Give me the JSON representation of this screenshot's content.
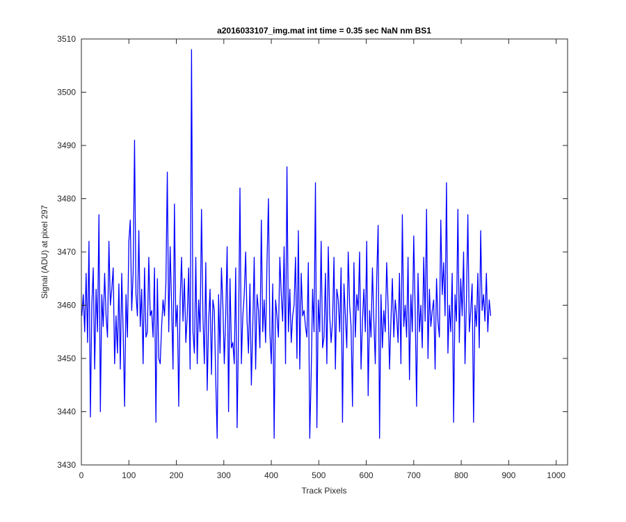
{
  "chart_data": {
    "type": "line",
    "title": "a2016033107_img.mat int time = 0.35 sec  NaN nm BS1",
    "xlabel": "Track Pixels",
    "ylabel": "Signal (ADU) at pixel 297",
    "xlim": [
      0,
      1024
    ],
    "ylim": [
      3430,
      3510
    ],
    "xticks": [
      0,
      100,
      200,
      300,
      400,
      500,
      600,
      700,
      800,
      900,
      1000
    ],
    "yticks": [
      3430,
      3440,
      3450,
      3460,
      3470,
      3480,
      3490,
      3500,
      3510
    ],
    "grid": false,
    "box": true,
    "series": [
      {
        "color": "#0000ff",
        "sample_step": 3,
        "x_start": 1,
        "y": [
          3458,
          3462,
          3455,
          3466,
          3453,
          3472,
          3439,
          3460,
          3467,
          3448,
          3463,
          3455,
          3477,
          3440,
          3462,
          3456,
          3466,
          3458,
          3454,
          3472,
          3460,
          3463,
          3467,
          3449,
          3458,
          3451,
          3464,
          3448,
          3466,
          3455,
          3441,
          3462,
          3454,
          3472,
          3476,
          3459,
          3466,
          3491,
          3462,
          3458,
          3474,
          3456,
          3463,
          3449,
          3467,
          3454,
          3455,
          3469,
          3458,
          3459,
          3454,
          3467,
          3438,
          3465,
          3450,
          3449,
          3456,
          3461,
          3458,
          3464,
          3485,
          3455,
          3471,
          3460,
          3448,
          3479,
          3456,
          3460,
          3441,
          3461,
          3469,
          3457,
          3465,
          3453,
          3458,
          3467,
          3448,
          3508,
          3455,
          3451,
          3469,
          3449,
          3461,
          3455,
          3478,
          3458,
          3449,
          3468,
          3444,
          3457,
          3463,
          3447,
          3461,
          3459,
          3446,
          3435,
          3462,
          3451,
          3467,
          3460,
          3449,
          3458,
          3471,
          3440,
          3465,
          3452,
          3453,
          3449,
          3467,
          3437,
          3455,
          3482,
          3449,
          3458,
          3462,
          3470,
          3457,
          3451,
          3464,
          3445,
          3456,
          3469,
          3448,
          3462,
          3459,
          3452,
          3476,
          3455,
          3461,
          3453,
          3468,
          3480,
          3455,
          3449,
          3464,
          3435,
          3461,
          3458,
          3454,
          3469,
          3462,
          3457,
          3471,
          3449,
          3486,
          3455,
          3463,
          3453,
          3458,
          3460,
          3469,
          3450,
          3474,
          3448,
          3466,
          3458,
          3459,
          3456,
          3454,
          3468,
          3435,
          3447,
          3463,
          3455,
          3483,
          3437,
          3461,
          3455,
          3472,
          3452,
          3454,
          3466,
          3449,
          3471,
          3458,
          3453,
          3457,
          3469,
          3448,
          3463,
          3461,
          3455,
          3467,
          3438,
          3464,
          3458,
          3452,
          3470,
          3460,
          3456,
          3441,
          3468,
          3454,
          3462,
          3459,
          3470,
          3448,
          3457,
          3463,
          3455,
          3472,
          3443,
          3459,
          3454,
          3467,
          3457,
          3449,
          3465,
          3475,
          3435,
          3462,
          3452,
          3459,
          3455,
          3468,
          3460,
          3448,
          3457,
          3465,
          3454,
          3461,
          3458,
          3453,
          3466,
          3449,
          3477,
          3456,
          3460,
          3454,
          3469,
          3446,
          3462,
          3455,
          3473,
          3459,
          3441,
          3466,
          3455,
          3460,
          3452,
          3469,
          3457,
          3478,
          3450,
          3463,
          3456,
          3459,
          3461,
          3448,
          3465,
          3457,
          3454,
          3476,
          3462,
          3468,
          3458,
          3483,
          3451,
          3460,
          3455,
          3466,
          3438,
          3462,
          3457,
          3478,
          3453,
          3465,
          3458,
          3470,
          3449,
          3461,
          3477,
          3455,
          3459,
          3464,
          3438,
          3460,
          3456,
          3466,
          3452,
          3474,
          3459,
          3462,
          3457,
          3466,
          3455,
          3461,
          3458
        ]
      }
    ]
  }
}
